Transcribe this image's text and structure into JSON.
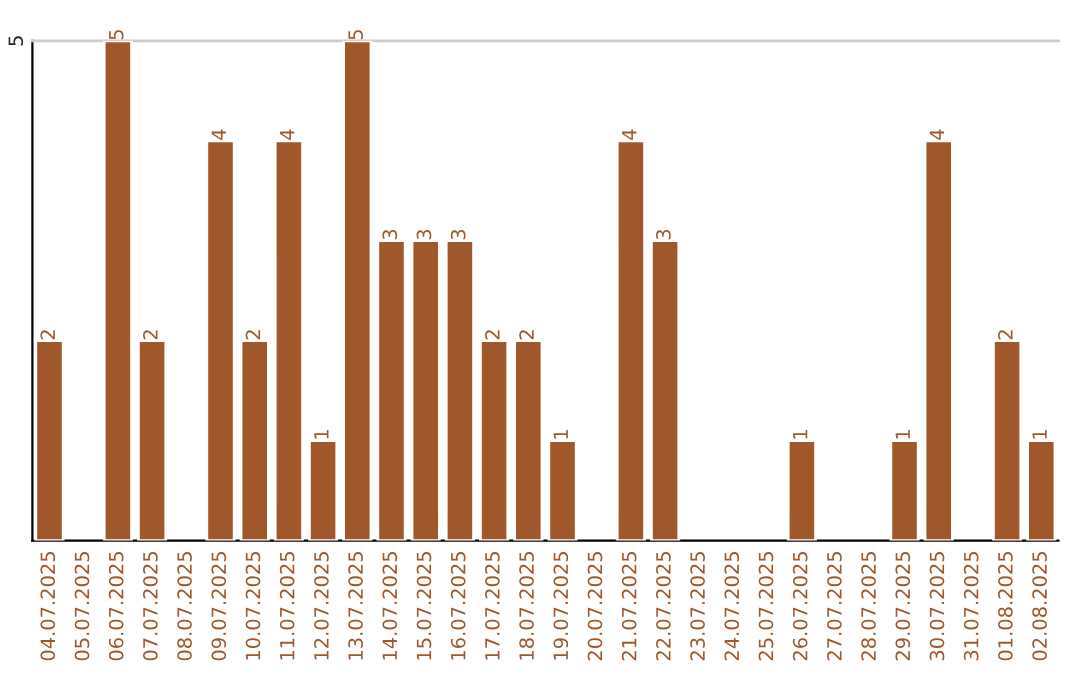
{
  "chart_data": {
    "type": "bar",
    "categories": [
      "04.07.2025",
      "05.07.2025",
      "06.07.2025",
      "07.07.2025",
      "08.07.2025",
      "09.07.2025",
      "10.07.2025",
      "11.07.2025",
      "12.07.2025",
      "13.07.2025",
      "14.07.2025",
      "15.07.2025",
      "16.07.2025",
      "17.07.2025",
      "18.07.2025",
      "19.07.2025",
      "20.07.2025",
      "21.07.2025",
      "22.07.2025",
      "23.07.2025",
      "24.07.2025",
      "25.07.2025",
      "26.07.2025",
      "27.07.2025",
      "28.07.2025",
      "29.07.2025",
      "30.07.2025",
      "31.07.2025",
      "01.08.2025",
      "02.08.2025"
    ],
    "values": [
      2,
      null,
      5,
      2,
      null,
      4,
      2,
      4,
      1,
      5,
      3,
      3,
      3,
      2,
      2,
      1,
      null,
      4,
      3,
      null,
      null,
      null,
      1,
      null,
      null,
      1,
      4,
      null,
      2,
      1
    ],
    "color": "#a0582a",
    "ylim": [
      0,
      5
    ],
    "yticks": [
      5
    ],
    "data_labels": true
  }
}
